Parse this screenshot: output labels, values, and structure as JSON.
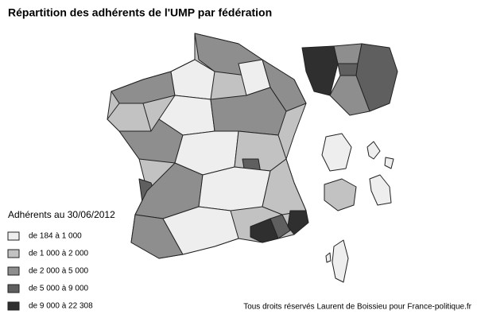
{
  "title": "Répartition des adhérents de l'UMP par fédération",
  "legend": {
    "title": "Adhérents au 30/06/2012",
    "items": [
      {
        "label": "de 184 à 1 000",
        "color": "#eeeeee"
      },
      {
        "label": "de 1 000 à 2 000",
        "color": "#c2c2c2"
      },
      {
        "label": "de 2 000 à 5 000",
        "color": "#8e8e8e"
      },
      {
        "label": "de 5 000 à 9 000",
        "color": "#5f5f5f"
      },
      {
        "label": "de 9 000 à 22 308",
        "color": "#2f2f2f"
      }
    ]
  },
  "credit": "Tous droits réservés Laurent de Boissieu pour France-politique.fr"
}
